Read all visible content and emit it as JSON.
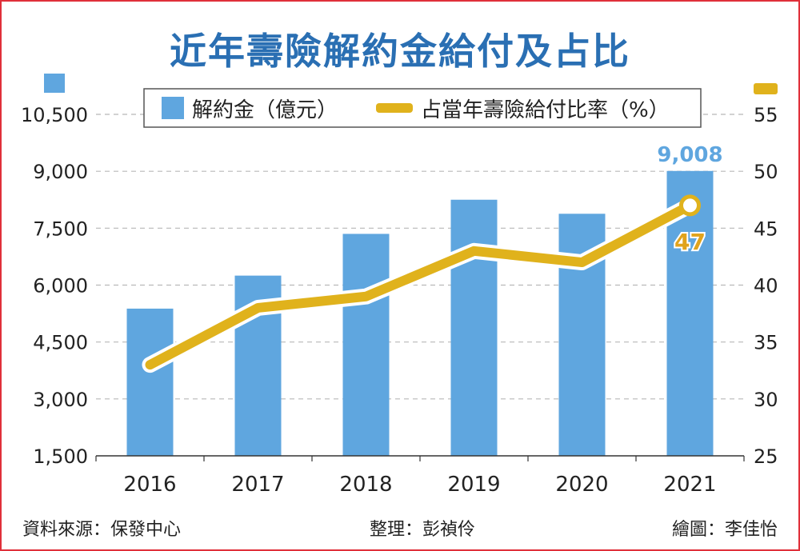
{
  "title": "近年壽險解約金給付及占比",
  "colors": {
    "bar": "#5fa6df",
    "line": "#e0b21c",
    "title": "#2a6fb3",
    "bar_label": "#5fa6df",
    "line_label": "#e0a31c",
    "grid": "#b8b8b8"
  },
  "chart_data": {
    "type": "bar",
    "categories": [
      "2016",
      "2017",
      "2018",
      "2019",
      "2020",
      "2021"
    ],
    "series": [
      {
        "name": "解約金（億元）",
        "type": "bar",
        "axis": "left",
        "values": [
          5380,
          6250,
          7350,
          8250,
          7880,
          9008
        ]
      },
      {
        "name": "占當年壽險給付比率（%）",
        "type": "line",
        "axis": "right",
        "values": [
          33,
          38,
          39,
          43,
          42,
          47
        ]
      }
    ],
    "y_left": {
      "range": [
        1500,
        10500
      ],
      "ticks": [
        1500,
        3000,
        4500,
        6000,
        7500,
        9000,
        10500
      ],
      "tick_labels": [
        "1,500",
        "3,000",
        "4,500",
        "6,000",
        "7,500",
        "9,000",
        "10,500"
      ]
    },
    "y_right": {
      "range": [
        25,
        55
      ],
      "ticks": [
        25,
        30,
        35,
        40,
        45,
        50,
        55
      ],
      "tick_labels": [
        "25",
        "30",
        "35",
        "40",
        "45",
        "50",
        "55"
      ]
    },
    "annotations": [
      {
        "series": 0,
        "index": 5,
        "text": "9,008"
      },
      {
        "series": 1,
        "index": 5,
        "text": "47"
      }
    ],
    "grid": true,
    "legend_position": "top-center"
  },
  "footer": {
    "source": "資料來源：保發中心",
    "editor": "整理：彭禎伶",
    "artist": "繪圖：李佳怡"
  }
}
